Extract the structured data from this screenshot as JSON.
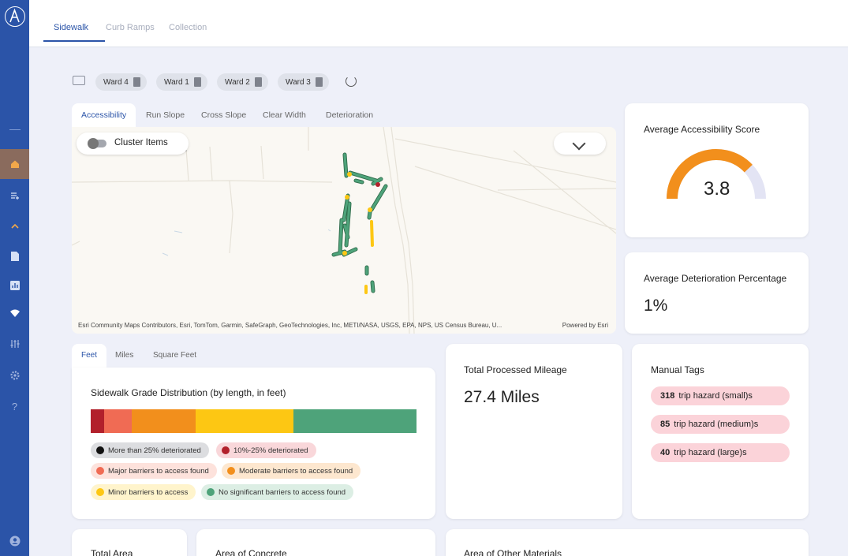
{
  "top_tabs": [
    {
      "label": "Sidewalk",
      "active": true
    },
    {
      "label": "Curb Ramps",
      "active": false
    },
    {
      "label": "Collection",
      "active": false
    }
  ],
  "sidebar": {
    "items": [
      {
        "icon": "home-icon",
        "active": true
      },
      {
        "icon": "list-add-icon"
      },
      {
        "icon": "chevron-up-icon"
      },
      {
        "icon": "report-icon"
      },
      {
        "icon": "chart-icon"
      },
      {
        "icon": "signal-icon"
      },
      {
        "icon": "sliders-icon"
      },
      {
        "icon": "settings-icon"
      },
      {
        "icon": "help-icon",
        "glyph": "?"
      },
      {
        "icon": "user-icon"
      }
    ]
  },
  "filters": {
    "chips": [
      "Ward 4",
      "Ward 1",
      "Ward 2",
      "Ward 3"
    ]
  },
  "map": {
    "tabs": [
      "Accessibility",
      "Run Slope",
      "Cross Slope",
      "Clear Width",
      "Deterioration"
    ],
    "active_tab": "Accessibility",
    "cluster_label": "Cluster Items",
    "attribution": "Esri Community Maps Contributors, Esri, TomTom, Garmin, SafeGraph, GeoTechnologies, Inc, METI/NASA, USGS, EPA, NPS, US Census Bureau, U...",
    "powered_by": "Powered by Esri",
    "road_label": "d"
  },
  "accessibility": {
    "title": "Average Accessibility Score",
    "value": "3.8",
    "fraction": 0.76,
    "color": "#f28f1c",
    "track_color": "#e3e4f4"
  },
  "deterioration": {
    "title": "Average Deterioration Percentage",
    "value": "1%"
  },
  "units_tabs": [
    "Feet",
    "Miles",
    "Square Feet"
  ],
  "grade": {
    "title": "Sidewalk Grade Distribution (by length, in feet)",
    "segments": [
      {
        "color": "#b2202b",
        "share": 0.04
      },
      {
        "color": "#f06b54",
        "share": 0.087
      },
      {
        "color": "#f28f1c",
        "share": 0.195
      },
      {
        "color": "#fdc713",
        "share": 0.3
      },
      {
        "color": "#4ea37a",
        "share": 0.378
      }
    ],
    "legend": [
      {
        "label": "More than 25% deteriorated",
        "dot": "#111111",
        "bg": "#dcdde0"
      },
      {
        "label": "10%-25% deteriorated",
        "dot": "#b2202b",
        "bg": "#f9d7da"
      },
      {
        "label": "Major barriers to access found",
        "dot": "#f06b54",
        "bg": "#fde2dc"
      },
      {
        "label": "Moderate barriers to access found",
        "dot": "#f28f1c",
        "bg": "#fde7cf"
      },
      {
        "label": "Minor barriers to access",
        "dot": "#fdc713",
        "bg": "#fff4cc"
      },
      {
        "label": "No significant barriers to access found",
        "dot": "#4ea37a",
        "bg": "#dceee4"
      }
    ]
  },
  "mileage": {
    "title": "Total Processed Mileage",
    "value": "27.4 Miles"
  },
  "manual_tags": {
    "title": "Manual Tags",
    "items": [
      {
        "count": "318",
        "label": "trip hazard (small)s"
      },
      {
        "count": "85",
        "label": "trip hazard (medium)s"
      },
      {
        "count": "40",
        "label": "trip hazard (large)s"
      }
    ]
  },
  "bottom_cards": {
    "total_area": "Total Area",
    "concrete": "Area of Concrete",
    "other": "Area of Other Materials"
  }
}
